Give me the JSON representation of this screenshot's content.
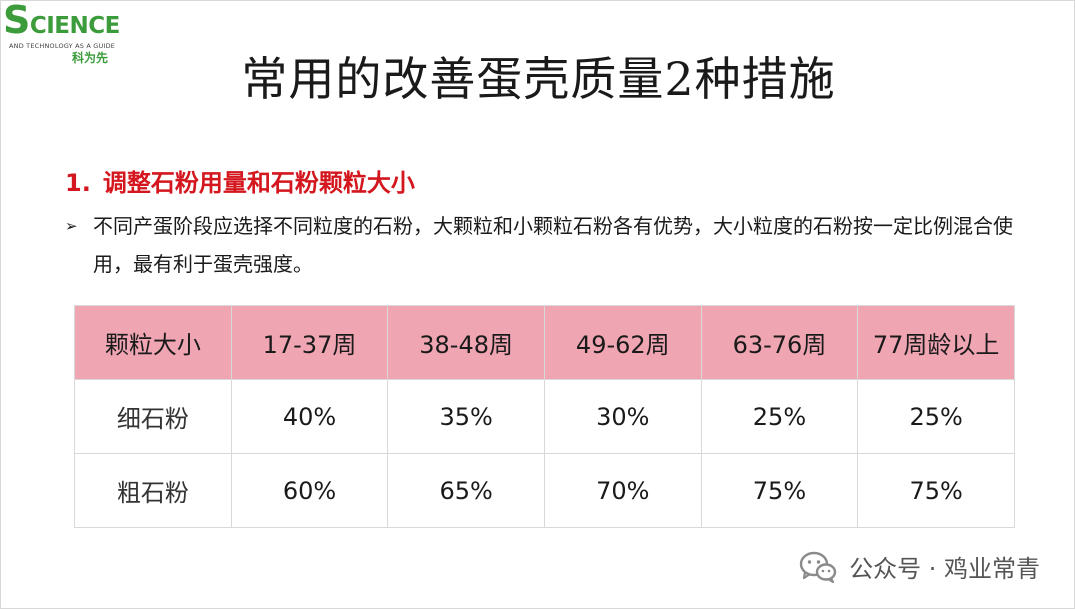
{
  "logo": {
    "main_first": "S",
    "main_rest": "CIENCE",
    "subtitle": "AND TECHNOLOGY AS A GUIDE",
    "chinese": "科为先",
    "color": "#3c9c3c"
  },
  "title": "常用的改善蛋壳质量2种措施",
  "section": {
    "number": "1.",
    "heading": "调整石粉用量和石粉颗粒大小",
    "color": "#d4171e"
  },
  "bullet": {
    "text": "不同产蛋阶段应选择不同粒度的石粉，大颗粒和小颗粒石粉各有优势，大小粒度的石粉按一定比例混合使用，最有利于蛋壳强度。",
    "icon": "arrow-bullet-icon"
  },
  "table": {
    "header_color": "#f0a5b3",
    "headers": [
      "颗粒大小",
      "17-37周",
      "38-48周",
      "49-62周",
      "63-76周",
      "77周龄以上"
    ],
    "rows": [
      {
        "label": "细石粉",
        "values": [
          "40%",
          "35%",
          "30%",
          "25%",
          "25%"
        ]
      },
      {
        "label": "粗石粉",
        "values": [
          "60%",
          "65%",
          "70%",
          "75%",
          "75%"
        ]
      }
    ]
  },
  "watermark": {
    "text": "公众号 · 鸡业常青",
    "icon": "wechat-icon"
  }
}
